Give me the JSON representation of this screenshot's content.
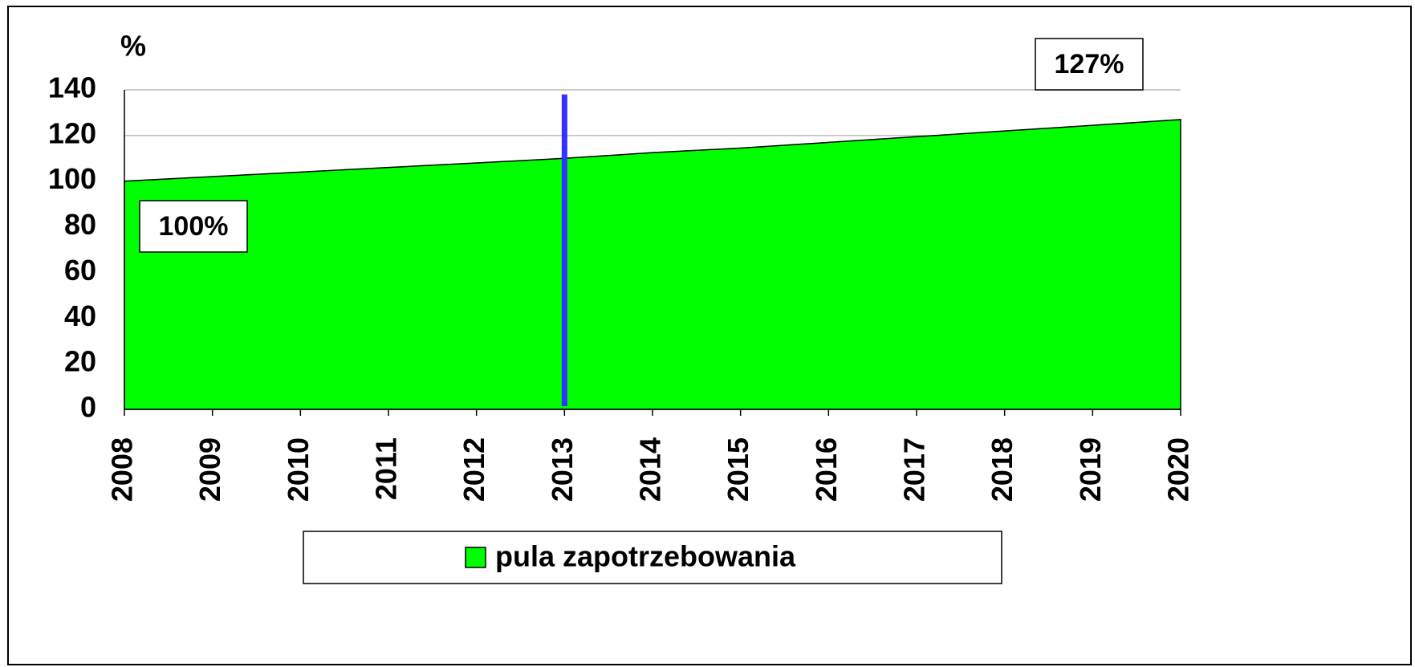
{
  "chart_data": {
    "type": "area",
    "y_label": "%",
    "categories": [
      "2008",
      "2009",
      "2010",
      "2011",
      "2012",
      "2013",
      "2014",
      "2015",
      "2016",
      "2017",
      "2018",
      "2019",
      "2020"
    ],
    "series": [
      {
        "name": "pula zapotrzebowania",
        "color": "#00ff00",
        "values": [
          100,
          102,
          104,
          106,
          108,
          110,
          112.5,
          114.5,
          117,
          119.5,
          122,
          124.5,
          127
        ]
      }
    ],
    "ylim": [
      0,
      140
    ],
    "yticks": [
      0,
      20,
      40,
      60,
      80,
      100,
      120,
      140
    ],
    "grid": true,
    "vertical_line": {
      "x": "2013",
      "top": 138,
      "color": "#3333ff"
    },
    "annotations": [
      {
        "text": "100%"
      },
      {
        "text": "127%"
      }
    ],
    "legend": "bottom"
  }
}
